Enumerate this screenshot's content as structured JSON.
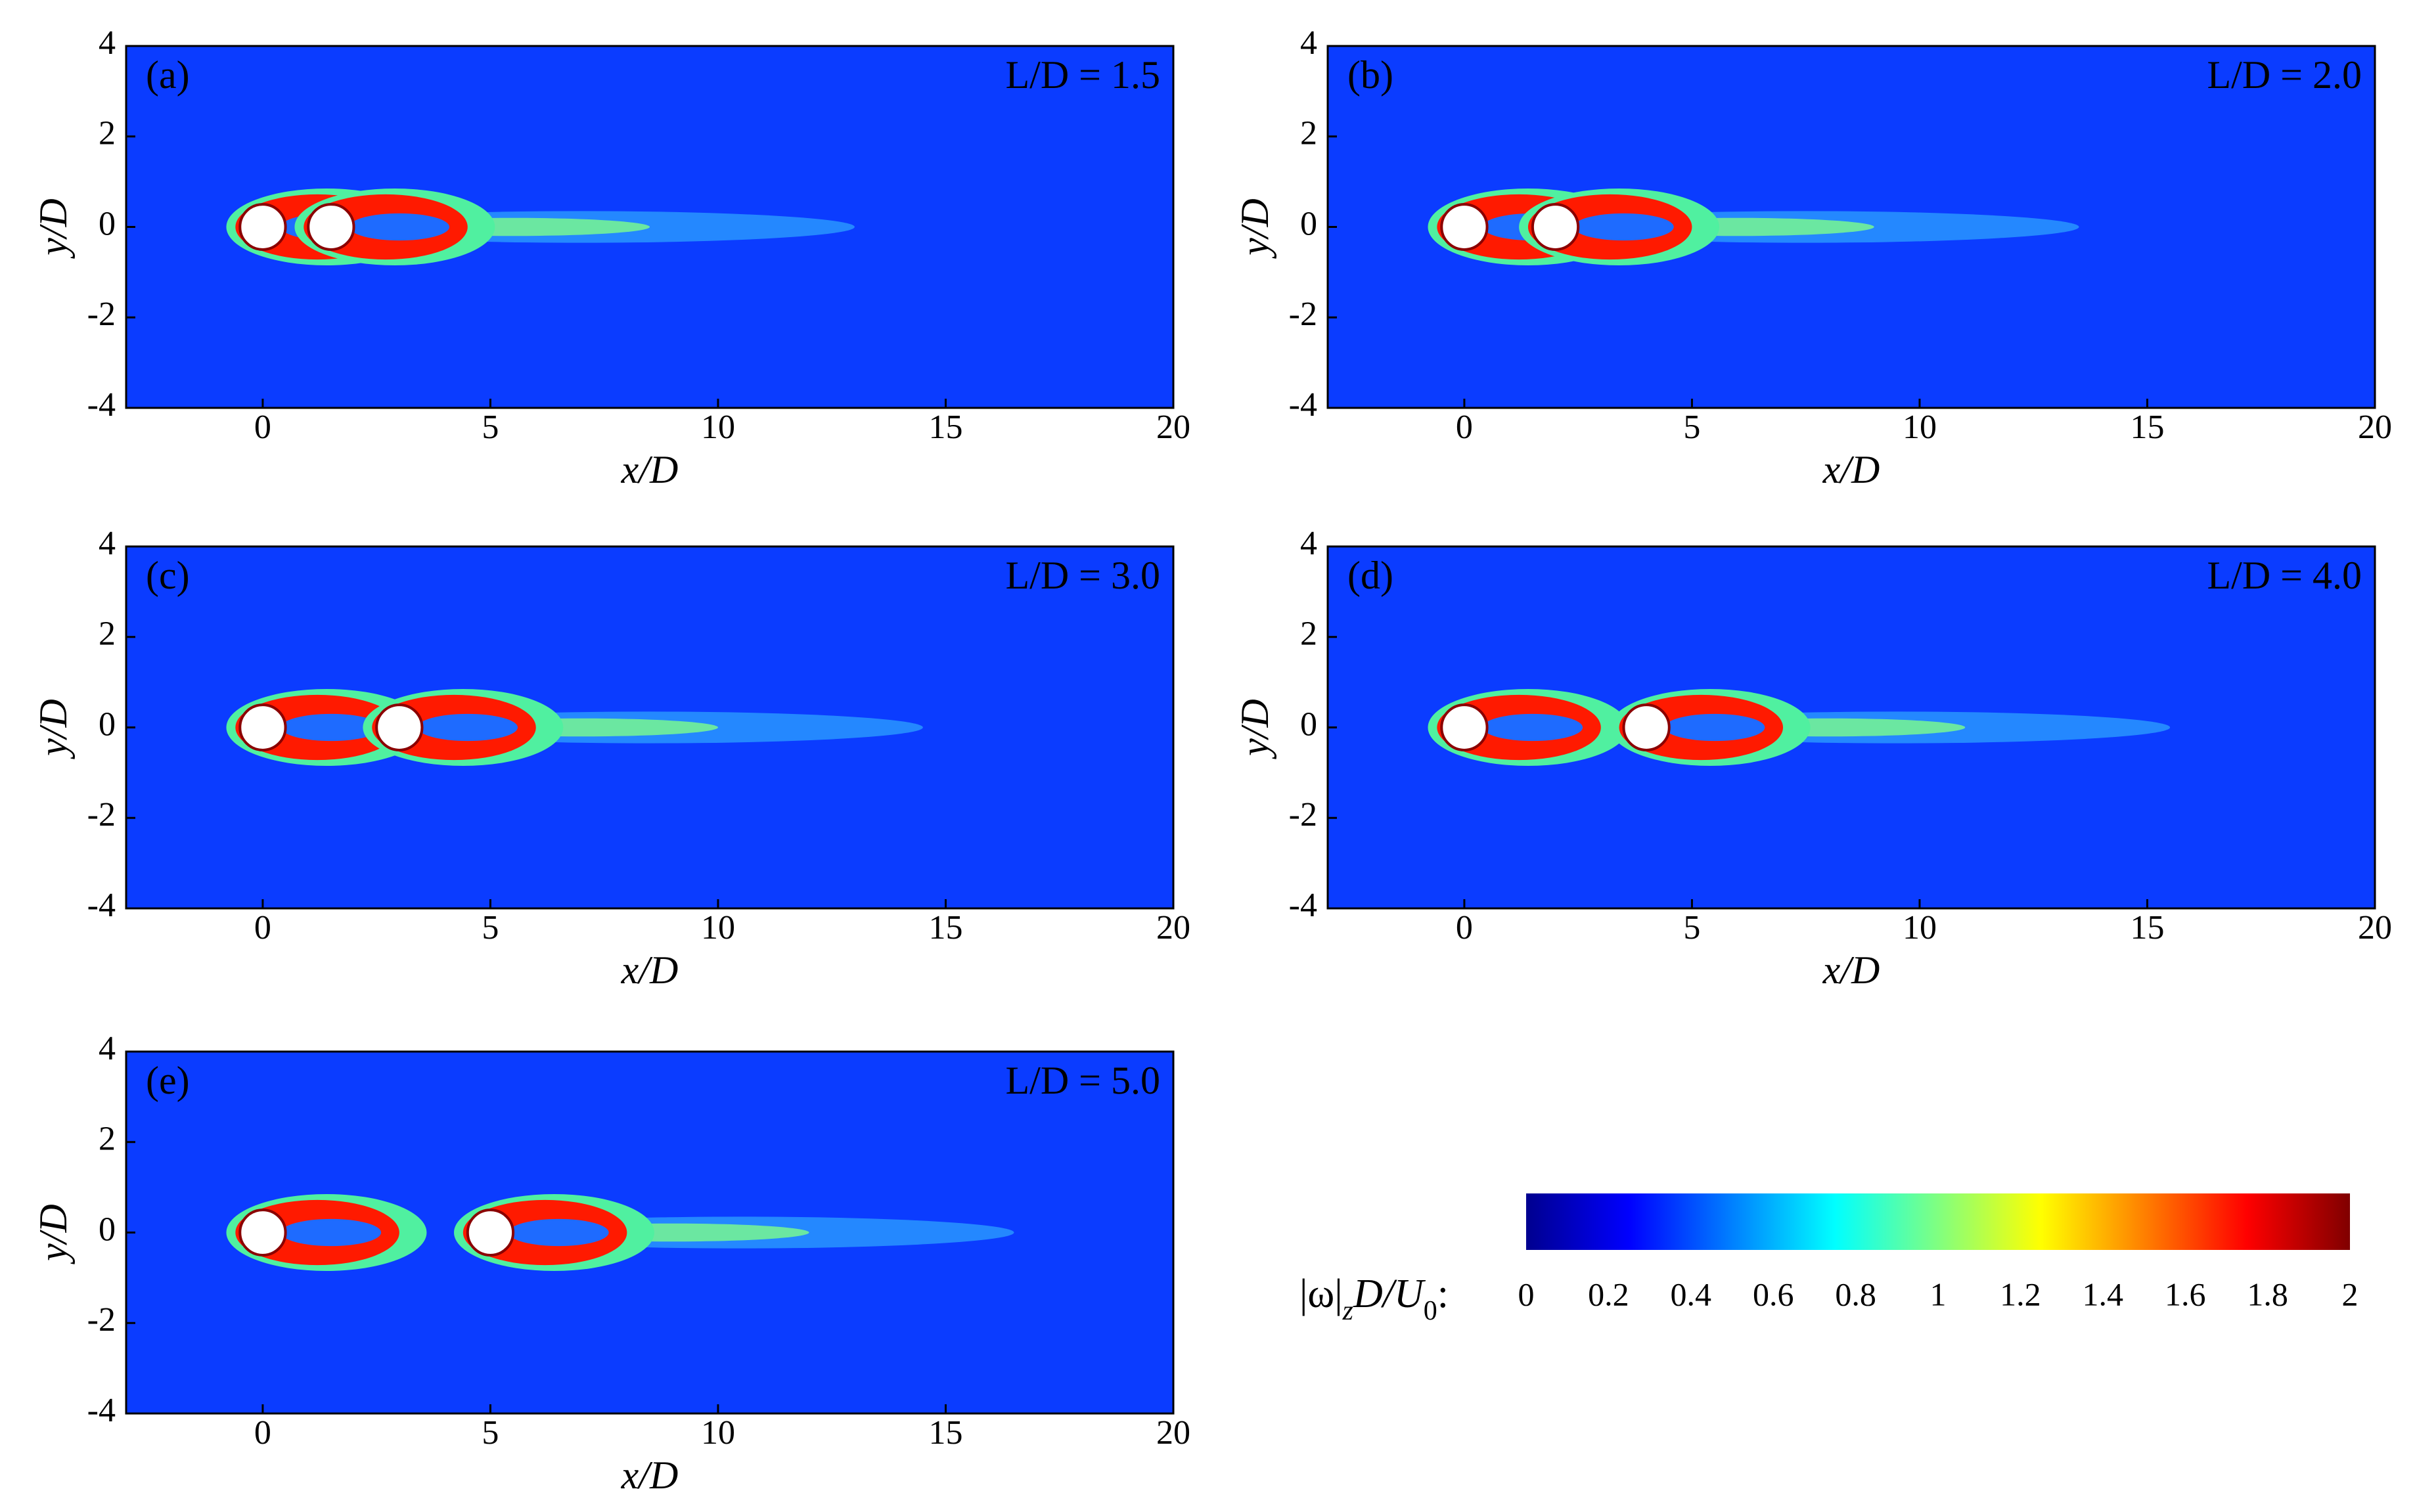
{
  "chart_data": [
    {
      "type": "contour",
      "panel_label": "(a)",
      "annotation": "L/D = 1.5",
      "cylinder_x": [
        0,
        1.5
      ],
      "xlabel": "x/D",
      "ylabel": "y/D",
      "xlim": [
        -3,
        20
      ],
      "ylim": [
        -4,
        4
      ],
      "xticks": [
        0,
        5,
        10,
        15,
        20
      ],
      "yticks": [
        -4,
        -2,
        0,
        2,
        4
      ]
    },
    {
      "type": "contour",
      "panel_label": "(b)",
      "annotation": "L/D = 2.0",
      "cylinder_x": [
        0,
        2
      ],
      "xlabel": "x/D",
      "ylabel": "y/D",
      "xlim": [
        -3,
        20
      ],
      "ylim": [
        -4,
        4
      ],
      "xticks": [
        0,
        5,
        10,
        15,
        20
      ],
      "yticks": [
        -4,
        -2,
        0,
        2,
        4
      ]
    },
    {
      "type": "contour",
      "panel_label": "(c)",
      "annotation": "L/D = 3.0",
      "cylinder_x": [
        0,
        3
      ],
      "xlabel": "x/D",
      "ylabel": "y/D",
      "xlim": [
        -3,
        20
      ],
      "ylim": [
        -4,
        4
      ],
      "xticks": [
        0,
        5,
        10,
        15,
        20
      ],
      "yticks": [
        -4,
        -2,
        0,
        2,
        4
      ]
    },
    {
      "type": "contour",
      "panel_label": "(d)",
      "annotation": "L/D = 4.0",
      "cylinder_x": [
        0,
        4
      ],
      "xlabel": "x/D",
      "ylabel": "y/D",
      "xlim": [
        -3,
        20
      ],
      "ylim": [
        -4,
        4
      ],
      "xticks": [
        0,
        5,
        10,
        15,
        20
      ],
      "yticks": [
        -4,
        -2,
        0,
        2,
        4
      ]
    },
    {
      "type": "contour",
      "panel_label": "(e)",
      "annotation": "L/D = 5.0",
      "cylinder_x": [
        0,
        5
      ],
      "xlabel": "x/D",
      "ylabel": "y/D",
      "xlim": [
        -3,
        20
      ],
      "ylim": [
        -4,
        4
      ],
      "xticks": [
        0,
        5,
        10,
        15,
        20
      ],
      "yticks": [
        -4,
        -2,
        0,
        2,
        4
      ]
    },
    {
      "type": "colorbar",
      "label_parts": [
        "|ω|",
        "z",
        "D/",
        "U",
        "0",
        ":"
      ],
      "colormap": "jet",
      "xlim": [
        0,
        2
      ],
      "xticks": [
        0,
        0.2,
        0.4,
        0.6,
        0.8,
        1,
        1.2,
        1.4,
        1.6,
        1.8,
        2
      ]
    }
  ]
}
